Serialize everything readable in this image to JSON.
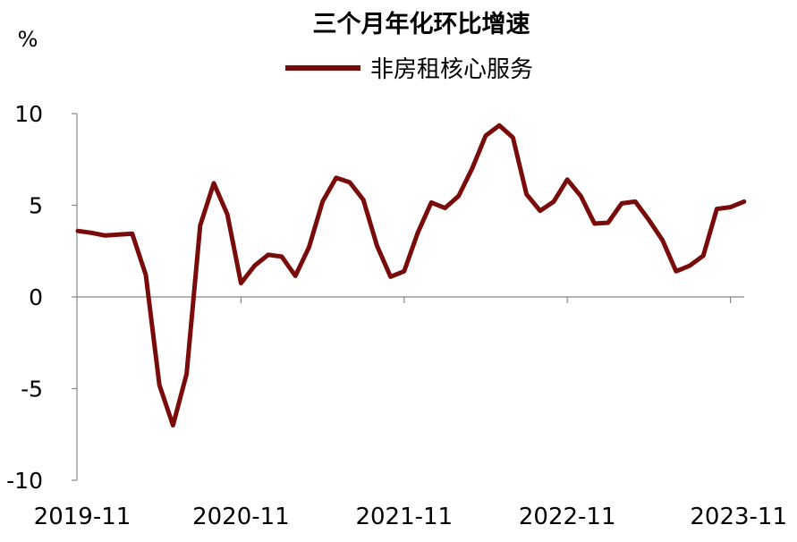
{
  "chart_data": {
    "type": "line",
    "title": "三个月年化环比增速",
    "ylabel": "%",
    "xlabel": "",
    "ylim": [
      -10,
      10
    ],
    "yticks": [
      10,
      5,
      0,
      -5,
      -10
    ],
    "yticklabels": [
      "10",
      "5",
      "0",
      "-5",
      "-10"
    ],
    "grid": false,
    "legend_position": "top-center",
    "x_tick_labels": [
      "2019-11",
      "2020-11",
      "2021-11",
      "2022-11",
      "2023-11"
    ],
    "x_tick_months": [
      "2019-11",
      "2020-11",
      "2021-11",
      "2022-11",
      "2023-11"
    ],
    "x": [
      "2019-11",
      "2019-12",
      "2020-01",
      "2020-02",
      "2020-03",
      "2020-04",
      "2020-05",
      "2020-06",
      "2020-07",
      "2020-08",
      "2020-09",
      "2020-10",
      "2020-11",
      "2020-12",
      "2021-01",
      "2021-02",
      "2021-03",
      "2021-04",
      "2021-05",
      "2021-06",
      "2021-07",
      "2021-08",
      "2021-09",
      "2021-10",
      "2021-11",
      "2021-12",
      "2022-01",
      "2022-02",
      "2022-03",
      "2022-04",
      "2022-05",
      "2022-06",
      "2022-07",
      "2022-08",
      "2022-09",
      "2022-10",
      "2022-11",
      "2022-12",
      "2023-01",
      "2023-02",
      "2023-03",
      "2023-04",
      "2023-05",
      "2023-06",
      "2023-07",
      "2023-08",
      "2023-09",
      "2023-10",
      "2023-11",
      "2023-12"
    ],
    "series": [
      {
        "name": "非房租核心服务",
        "color": "#7a0b0b",
        "values": [
          3.6,
          3.5,
          3.35,
          3.4,
          3.45,
          1.2,
          -4.8,
          -7.0,
          -4.2,
          3.9,
          6.2,
          4.5,
          0.75,
          1.7,
          2.3,
          2.2,
          1.15,
          2.7,
          5.2,
          6.5,
          6.25,
          5.3,
          2.8,
          1.1,
          1.4,
          3.5,
          5.15,
          4.85,
          5.5,
          7.0,
          8.8,
          9.35,
          8.7,
          5.6,
          4.7,
          5.2,
          6.4,
          5.5,
          4.0,
          4.05,
          5.1,
          5.2,
          4.2,
          3.1,
          1.4,
          1.7,
          2.25,
          4.8,
          4.9,
          5.2
        ]
      }
    ]
  }
}
